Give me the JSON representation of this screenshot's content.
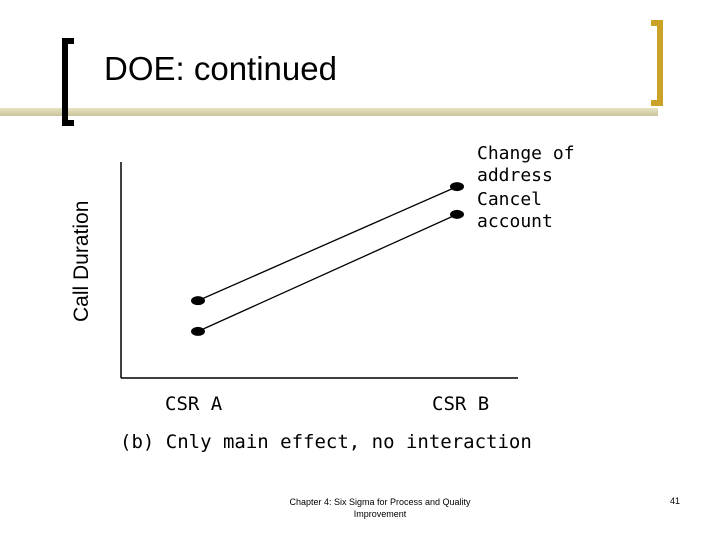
{
  "slide": {
    "title": "DOE: continued",
    "footer": "Chapter 4: Six Sigma for Process and Quality Improvement",
    "page_number": "41",
    "accent_color": "#c9a227"
  },
  "chart_data": {
    "type": "line",
    "categories": [
      "CSR A",
      "CSR B"
    ],
    "ylabel": "Call Duration",
    "xlabel": "",
    "caption": "(b) Cnly main effect, no interaction",
    "series": [
      {
        "name": "Change of address",
        "label_lines": [
          "Change of",
          "address"
        ],
        "values": [
          0.78,
          1.93
        ]
      },
      {
        "name": "Cancel account",
        "label_lines": [
          "Cancel",
          "account"
        ],
        "values": [
          0.47,
          1.65
        ]
      }
    ],
    "ylim": [
      0,
      2.4
    ],
    "grid": false,
    "legend": "end-of-line labels"
  }
}
